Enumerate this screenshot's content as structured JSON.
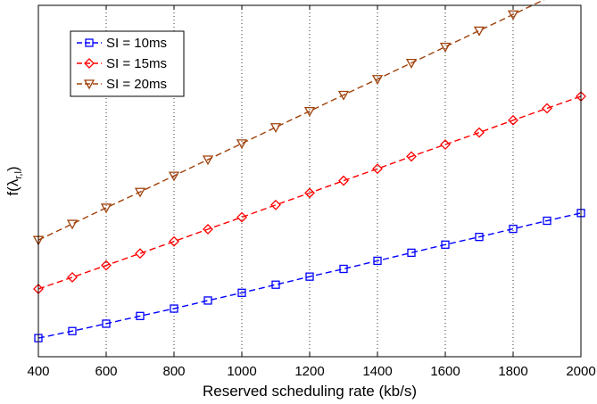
{
  "chart_data": {
    "type": "line",
    "title": "",
    "xlabel": "Reserved scheduling rate (kb/s)",
    "ylabel_main": "f(λ",
    "ylabel_sub": "r,l",
    "ylabel_close": ")",
    "xlim": [
      400,
      2000
    ],
    "ylim": [
      0,
      1
    ],
    "x_ticks": [
      400,
      600,
      800,
      1000,
      1200,
      1400,
      1600,
      1800,
      2000
    ],
    "y_ticks": [],
    "grid": "vertical dotted",
    "legend_position": "top-left",
    "x": [
      400,
      500,
      600,
      700,
      800,
      900,
      1000,
      1100,
      1200,
      1300,
      1400,
      1500,
      1600,
      1700,
      1800,
      1900,
      2000
    ],
    "series": [
      {
        "name": "SI = 10ms",
        "color": "#0000ff",
        "marker": "square",
        "values": [
          0.053,
          0.073,
          0.094,
          0.116,
          0.137,
          0.16,
          0.182,
          0.205,
          0.228,
          0.25,
          0.273,
          0.296,
          0.319,
          0.341,
          0.364,
          0.387,
          0.409
        ]
      },
      {
        "name": "SI = 15ms",
        "color": "#ff0000",
        "marker": "diamond",
        "values": [
          0.193,
          0.226,
          0.26,
          0.294,
          0.328,
          0.363,
          0.397,
          0.432,
          0.466,
          0.501,
          0.535,
          0.57,
          0.604,
          0.638,
          0.673,
          0.707,
          0.741
        ]
      },
      {
        "name": "SI = 20ms",
        "color": "#a0410a",
        "marker": "triangle-down",
        "values": [
          0.332,
          0.378,
          0.424,
          0.469,
          0.515,
          0.561,
          0.607,
          0.653,
          0.699,
          0.745,
          0.79,
          0.836,
          0.882,
          0.928,
          0.974,
          1.02,
          1.066
        ]
      }
    ]
  }
}
